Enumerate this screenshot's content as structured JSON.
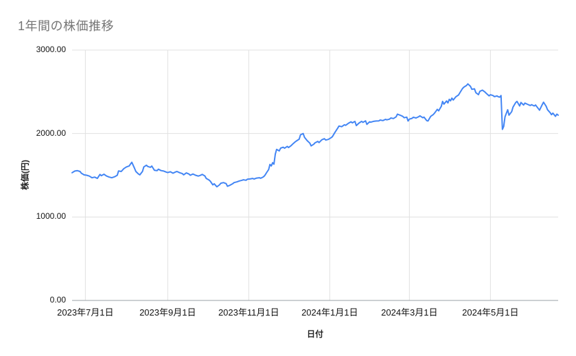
{
  "chart_data": {
    "type": "line",
    "title": "1年間の株価推移",
    "xlabel": "日付",
    "ylabel": "株価(円)",
    "ylim": [
      0,
      3000
    ],
    "x_range": [
      "2023-06-21",
      "2024-06-21"
    ],
    "grid": true,
    "legend_position": "none",
    "colors": {
      "line": "#4285f4",
      "gridline": "#e0e0e0",
      "axis_line": "#9aa0a6",
      "title": "#757575",
      "tick_label": "#111111"
    },
    "y_ticks": [
      {
        "value": 0,
        "label": "0.00"
      },
      {
        "value": 1000,
        "label": "1000.00"
      },
      {
        "value": 2000,
        "label": "2000.00"
      },
      {
        "value": 3000,
        "label": "3000.00"
      }
    ],
    "x_ticks": [
      {
        "date": "2023-07-01",
        "label": "2023年7月1日"
      },
      {
        "date": "2023-09-01",
        "label": "2023年9月1日"
      },
      {
        "date": "2023-11-01",
        "label": "2023年11月1日"
      },
      {
        "date": "2024-01-01",
        "label": "2024年1月1日"
      },
      {
        "date": "2024-03-01",
        "label": "2024年3月1日"
      },
      {
        "date": "2024-05-01",
        "label": "2024年5月1日"
      }
    ],
    "points": [
      [
        "2023-06-21",
        1530
      ],
      [
        "2023-06-23",
        1550
      ],
      [
        "2023-06-25",
        1555
      ],
      [
        "2023-06-27",
        1545
      ],
      [
        "2023-06-28",
        1525
      ],
      [
        "2023-06-30",
        1505
      ],
      [
        "2023-07-02",
        1500
      ],
      [
        "2023-07-04",
        1490
      ],
      [
        "2023-07-06",
        1470
      ],
      [
        "2023-07-08",
        1478
      ],
      [
        "2023-07-10",
        1462
      ],
      [
        "2023-07-12",
        1510
      ],
      [
        "2023-07-13",
        1495
      ],
      [
        "2023-07-15",
        1512
      ],
      [
        "2023-07-17",
        1490
      ],
      [
        "2023-07-19",
        1478
      ],
      [
        "2023-07-21",
        1470
      ],
      [
        "2023-07-23",
        1482
      ],
      [
        "2023-07-25",
        1500
      ],
      [
        "2023-07-26",
        1552
      ],
      [
        "2023-07-28",
        1545
      ],
      [
        "2023-07-30",
        1580
      ],
      [
        "2023-08-01",
        1600
      ],
      [
        "2023-08-03",
        1612
      ],
      [
        "2023-08-04",
        1635
      ],
      [
        "2023-08-05",
        1655
      ],
      [
        "2023-08-07",
        1585
      ],
      [
        "2023-08-08",
        1545
      ],
      [
        "2023-08-10",
        1515
      ],
      [
        "2023-08-11",
        1505
      ],
      [
        "2023-08-13",
        1545
      ],
      [
        "2023-08-14",
        1600
      ],
      [
        "2023-08-16",
        1620
      ],
      [
        "2023-08-17",
        1605
      ],
      [
        "2023-08-19",
        1595
      ],
      [
        "2023-08-20",
        1610
      ],
      [
        "2023-08-22",
        1560
      ],
      [
        "2023-08-24",
        1555
      ],
      [
        "2023-08-25",
        1572
      ],
      [
        "2023-08-27",
        1556
      ],
      [
        "2023-08-29",
        1550
      ],
      [
        "2023-08-31",
        1538
      ],
      [
        "2023-09-01",
        1532
      ],
      [
        "2023-09-03",
        1542
      ],
      [
        "2023-09-05",
        1525
      ],
      [
        "2023-09-07",
        1540
      ],
      [
        "2023-09-08",
        1545
      ],
      [
        "2023-09-10",
        1530
      ],
      [
        "2023-09-12",
        1520
      ],
      [
        "2023-09-13",
        1505
      ],
      [
        "2023-09-15",
        1528
      ],
      [
        "2023-09-17",
        1515
      ],
      [
        "2023-09-18",
        1500
      ],
      [
        "2023-09-20",
        1515
      ],
      [
        "2023-09-22",
        1500
      ],
      [
        "2023-09-24",
        1490
      ],
      [
        "2023-09-25",
        1495
      ],
      [
        "2023-09-27",
        1510
      ],
      [
        "2023-09-29",
        1492
      ],
      [
        "2023-09-30",
        1462
      ],
      [
        "2023-10-02",
        1445
      ],
      [
        "2023-10-03",
        1430
      ],
      [
        "2023-10-05",
        1385
      ],
      [
        "2023-10-06",
        1398
      ],
      [
        "2023-10-08",
        1362
      ],
      [
        "2023-10-10",
        1385
      ],
      [
        "2023-10-11",
        1405
      ],
      [
        "2023-10-13",
        1412
      ],
      [
        "2023-10-15",
        1400
      ],
      [
        "2023-10-16",
        1368
      ],
      [
        "2023-10-18",
        1382
      ],
      [
        "2023-10-20",
        1400
      ],
      [
        "2023-10-21",
        1412
      ],
      [
        "2023-10-23",
        1420
      ],
      [
        "2023-10-25",
        1432
      ],
      [
        "2023-10-27",
        1440
      ],
      [
        "2023-10-28",
        1446
      ],
      [
        "2023-10-30",
        1440
      ],
      [
        "2023-10-31",
        1452
      ],
      [
        "2023-11-02",
        1456
      ],
      [
        "2023-11-04",
        1462
      ],
      [
        "2023-11-05",
        1455
      ],
      [
        "2023-11-07",
        1466
      ],
      [
        "2023-11-09",
        1470
      ],
      [
        "2023-11-10",
        1464
      ],
      [
        "2023-11-12",
        1480
      ],
      [
        "2023-11-13",
        1495
      ],
      [
        "2023-11-15",
        1545
      ],
      [
        "2023-11-16",
        1568
      ],
      [
        "2023-11-17",
        1630
      ],
      [
        "2023-11-18",
        1612
      ],
      [
        "2023-11-19",
        1650
      ],
      [
        "2023-11-20",
        1632
      ],
      [
        "2023-11-21",
        1752
      ],
      [
        "2023-11-22",
        1810
      ],
      [
        "2023-11-24",
        1792
      ],
      [
        "2023-11-25",
        1825
      ],
      [
        "2023-11-27",
        1836
      ],
      [
        "2023-11-28",
        1824
      ],
      [
        "2023-11-30",
        1846
      ],
      [
        "2023-12-01",
        1832
      ],
      [
        "2023-12-03",
        1856
      ],
      [
        "2023-12-04",
        1872
      ],
      [
        "2023-12-06",
        1900
      ],
      [
        "2023-12-07",
        1912
      ],
      [
        "2023-12-09",
        1932
      ],
      [
        "2023-12-10",
        1985
      ],
      [
        "2023-12-12",
        2000
      ],
      [
        "2023-12-13",
        1955
      ],
      [
        "2023-12-15",
        1915
      ],
      [
        "2023-12-17",
        1885
      ],
      [
        "2023-12-18",
        1852
      ],
      [
        "2023-12-20",
        1872
      ],
      [
        "2023-12-21",
        1890
      ],
      [
        "2023-12-23",
        1905
      ],
      [
        "2023-12-24",
        1892
      ],
      [
        "2023-12-26",
        1925
      ],
      [
        "2023-12-28",
        1938
      ],
      [
        "2023-12-29",
        1922
      ],
      [
        "2023-12-31",
        1930
      ],
      [
        "2024-01-02",
        1950
      ],
      [
        "2024-01-03",
        1962
      ],
      [
        "2024-01-05",
        2015
      ],
      [
        "2024-01-07",
        2065
      ],
      [
        "2024-01-08",
        2090
      ],
      [
        "2024-01-10",
        2082
      ],
      [
        "2024-01-12",
        2105
      ],
      [
        "2024-01-13",
        2098
      ],
      [
        "2024-01-15",
        2122
      ],
      [
        "2024-01-17",
        2140
      ],
      [
        "2024-01-18",
        2128
      ],
      [
        "2024-01-20",
        2145
      ],
      [
        "2024-01-21",
        2095
      ],
      [
        "2024-01-23",
        2125
      ],
      [
        "2024-01-25",
        2146
      ],
      [
        "2024-01-26",
        2134
      ],
      [
        "2024-01-28",
        2152
      ],
      [
        "2024-01-29",
        2110
      ],
      [
        "2024-01-31",
        2140
      ],
      [
        "2024-02-01",
        2136
      ],
      [
        "2024-02-03",
        2146
      ],
      [
        "2024-02-05",
        2150
      ],
      [
        "2024-02-07",
        2152
      ],
      [
        "2024-02-08",
        2162
      ],
      [
        "2024-02-10",
        2155
      ],
      [
        "2024-02-12",
        2170
      ],
      [
        "2024-02-13",
        2164
      ],
      [
        "2024-02-15",
        2172
      ],
      [
        "2024-02-16",
        2186
      ],
      [
        "2024-02-18",
        2180
      ],
      [
        "2024-02-20",
        2200
      ],
      [
        "2024-02-21",
        2232
      ],
      [
        "2024-02-23",
        2220
      ],
      [
        "2024-02-25",
        2205
      ],
      [
        "2024-02-26",
        2190
      ],
      [
        "2024-02-28",
        2196
      ],
      [
        "2024-02-29",
        2150
      ],
      [
        "2024-03-01",
        2172
      ],
      [
        "2024-03-03",
        2182
      ],
      [
        "2024-03-04",
        2195
      ],
      [
        "2024-03-06",
        2186
      ],
      [
        "2024-03-08",
        2202
      ],
      [
        "2024-03-09",
        2212
      ],
      [
        "2024-03-11",
        2190
      ],
      [
        "2024-03-12",
        2196
      ],
      [
        "2024-03-14",
        2155
      ],
      [
        "2024-03-15",
        2150
      ],
      [
        "2024-03-17",
        2205
      ],
      [
        "2024-03-19",
        2228
      ],
      [
        "2024-03-20",
        2246
      ],
      [
        "2024-03-22",
        2290
      ],
      [
        "2024-03-23",
        2272
      ],
      [
        "2024-03-25",
        2326
      ],
      [
        "2024-03-26",
        2385
      ],
      [
        "2024-03-27",
        2352
      ],
      [
        "2024-03-29",
        2390
      ],
      [
        "2024-03-30",
        2366
      ],
      [
        "2024-03-31",
        2410
      ],
      [
        "2024-04-01",
        2392
      ],
      [
        "2024-04-02",
        2425
      ],
      [
        "2024-04-03",
        2402
      ],
      [
        "2024-04-05",
        2440
      ],
      [
        "2024-04-07",
        2462
      ],
      [
        "2024-04-08",
        2490
      ],
      [
        "2024-04-10",
        2540
      ],
      [
        "2024-04-11",
        2556
      ],
      [
        "2024-04-13",
        2576
      ],
      [
        "2024-04-14",
        2595
      ],
      [
        "2024-04-16",
        2565
      ],
      [
        "2024-04-17",
        2530
      ],
      [
        "2024-04-19",
        2536
      ],
      [
        "2024-04-20",
        2490
      ],
      [
        "2024-04-22",
        2466
      ],
      [
        "2024-04-23",
        2505
      ],
      [
        "2024-04-25",
        2520
      ],
      [
        "2024-04-27",
        2496
      ],
      [
        "2024-04-28",
        2480
      ],
      [
        "2024-04-30",
        2452
      ],
      [
        "2024-05-01",
        2465
      ],
      [
        "2024-05-03",
        2455
      ],
      [
        "2024-05-04",
        2442
      ],
      [
        "2024-05-06",
        2450
      ],
      [
        "2024-05-07",
        2440
      ],
      [
        "2024-05-08",
        2436
      ],
      [
        "2024-05-09",
        2455
      ],
      [
        "2024-05-10",
        2050
      ],
      [
        "2024-05-11",
        2085
      ],
      [
        "2024-05-12",
        2200
      ],
      [
        "2024-05-14",
        2285
      ],
      [
        "2024-05-15",
        2220
      ],
      [
        "2024-05-17",
        2262
      ],
      [
        "2024-05-18",
        2315
      ],
      [
        "2024-05-20",
        2370
      ],
      [
        "2024-05-21",
        2385
      ],
      [
        "2024-05-23",
        2330
      ],
      [
        "2024-05-24",
        2372
      ],
      [
        "2024-05-26",
        2342
      ],
      [
        "2024-05-27",
        2365
      ],
      [
        "2024-05-29",
        2350
      ],
      [
        "2024-05-31",
        2336
      ],
      [
        "2024-06-01",
        2346
      ],
      [
        "2024-06-03",
        2330
      ],
      [
        "2024-06-04",
        2342
      ],
      [
        "2024-06-06",
        2300
      ],
      [
        "2024-06-07",
        2280
      ],
      [
        "2024-06-09",
        2346
      ],
      [
        "2024-06-10",
        2375
      ],
      [
        "2024-06-12",
        2325
      ],
      [
        "2024-06-13",
        2286
      ],
      [
        "2024-06-15",
        2250
      ],
      [
        "2024-06-16",
        2226
      ],
      [
        "2024-06-17",
        2245
      ],
      [
        "2024-06-19",
        2206
      ],
      [
        "2024-06-20",
        2232
      ],
      [
        "2024-06-21",
        2220
      ]
    ]
  }
}
